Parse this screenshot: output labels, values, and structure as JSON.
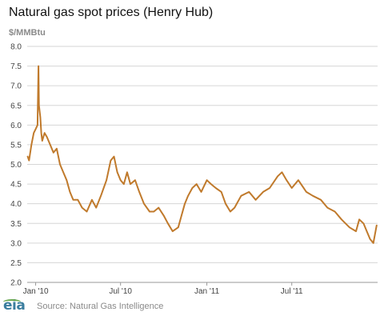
{
  "chart_data": {
    "type": "line",
    "title": "Natural gas spot prices (Henry Hub)",
    "ylabel": "$/MMBtu",
    "ylim": [
      2.0,
      8.0
    ],
    "yticks": [
      "8.0",
      "7.5",
      "7.0",
      "6.5",
      "6.0",
      "5.5",
      "5.0",
      "4.5",
      "4.0",
      "3.5",
      "3.0",
      "2.5",
      "2.0"
    ],
    "xlim": [
      "2009-12-14",
      "2011-12-31"
    ],
    "xticks": [
      {
        "label": "Jan '10",
        "date": "2010-01-01"
      },
      {
        "label": "Jul '10",
        "date": "2010-07-01"
      },
      {
        "label": "Jan '11",
        "date": "2011-01-01"
      },
      {
        "label": "Jul '11",
        "date": "2011-07-01"
      }
    ],
    "grid": "horizontal",
    "color": "#c07a2c",
    "series": [
      {
        "x": [
          "2009-12-15",
          "2009-12-18",
          "2009-12-23",
          "2009-12-28",
          "2010-01-01",
          "2010-01-05",
          "2010-01-07",
          "2010-01-08",
          "2010-01-11",
          "2010-01-13",
          "2010-01-15",
          "2010-01-20",
          "2010-01-25",
          "2010-02-01",
          "2010-02-08",
          "2010-02-15",
          "2010-02-22",
          "2010-03-01",
          "2010-03-08",
          "2010-03-15",
          "2010-03-22",
          "2010-04-01",
          "2010-04-10",
          "2010-04-20",
          "2010-05-01",
          "2010-05-10",
          "2010-05-20",
          "2010-06-01",
          "2010-06-10",
          "2010-06-17",
          "2010-06-24",
          "2010-07-01",
          "2010-07-08",
          "2010-07-15",
          "2010-07-22",
          "2010-08-01",
          "2010-08-10",
          "2010-08-20",
          "2010-09-01",
          "2010-09-10",
          "2010-09-20",
          "2010-10-01",
          "2010-10-10",
          "2010-10-20",
          "2010-11-01",
          "2010-11-08",
          "2010-11-15",
          "2010-11-22",
          "2010-12-01",
          "2010-12-10",
          "2010-12-20",
          "2011-01-01",
          "2011-01-10",
          "2011-01-20",
          "2011-02-01",
          "2011-02-10",
          "2011-02-20",
          "2011-03-01",
          "2011-03-15",
          "2011-04-01",
          "2011-04-15",
          "2011-05-01",
          "2011-05-15",
          "2011-06-01",
          "2011-06-10",
          "2011-06-20",
          "2011-07-01",
          "2011-07-15",
          "2011-08-01",
          "2011-08-15",
          "2011-09-01",
          "2011-09-15",
          "2011-10-01",
          "2011-10-15",
          "2011-11-01",
          "2011-11-15",
          "2011-11-22",
          "2011-12-01",
          "2011-12-08",
          "2011-12-15",
          "2011-12-22",
          "2011-12-29"
        ],
        "values": [
          5.2,
          5.1,
          5.5,
          5.8,
          5.9,
          6.0,
          7.5,
          6.5,
          6.2,
          5.8,
          5.6,
          5.8,
          5.7,
          5.5,
          5.3,
          5.4,
          5.0,
          4.8,
          4.6,
          4.3,
          4.1,
          4.1,
          3.9,
          3.8,
          4.1,
          3.9,
          4.2,
          4.6,
          5.1,
          5.2,
          4.8,
          4.6,
          4.5,
          4.8,
          4.5,
          4.6,
          4.3,
          4.0,
          3.8,
          3.8,
          3.9,
          3.7,
          3.5,
          3.3,
          3.4,
          3.7,
          4.0,
          4.2,
          4.4,
          4.5,
          4.3,
          4.6,
          4.5,
          4.4,
          4.3,
          4.0,
          3.8,
          3.9,
          4.2,
          4.3,
          4.1,
          4.3,
          4.4,
          4.7,
          4.8,
          4.6,
          4.4,
          4.6,
          4.3,
          4.2,
          4.1,
          3.9,
          3.8,
          3.6,
          3.4,
          3.3,
          3.6,
          3.5,
          3.3,
          3.1,
          3.0,
          3.45
        ]
      }
    ]
  },
  "footer": {
    "logo_text": "eia",
    "source": "Source: Natural Gas Intelligence"
  }
}
